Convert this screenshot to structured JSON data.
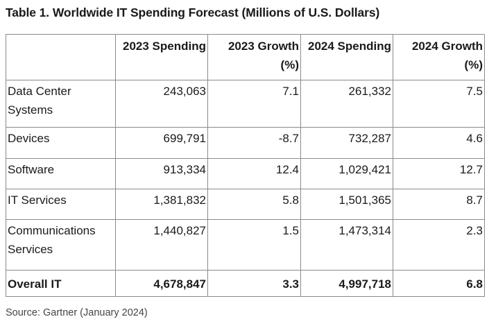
{
  "title": "Table 1. Worldwide IT Spending Forecast (Millions of U.S. Dollars)",
  "table": {
    "headers": [
      "",
      "2023 Spending",
      "2023 Growth (%)",
      "2024 Spending",
      "2024 Growth (%)"
    ],
    "rows": [
      [
        "Data Center Systems",
        "243,063",
        "7.1",
        "261,332",
        "7.5"
      ],
      [
        "Devices",
        "699,791",
        "-8.7",
        "732,287",
        "4.6"
      ],
      [
        "Software",
        "913,334",
        "12.4",
        "1,029,421",
        "12.7"
      ],
      [
        "IT Services",
        "1,381,832",
        "5.8",
        "1,501,365",
        "8.7"
      ],
      [
        "Communications Services",
        "1,440,827",
        "1.5",
        "1,473,314",
        "2.3"
      ],
      [
        "Overall IT",
        "4,678,847",
        "3.3",
        "4,997,718",
        "6.8"
      ]
    ]
  },
  "source": "Source: Gartner (January 2024)"
}
